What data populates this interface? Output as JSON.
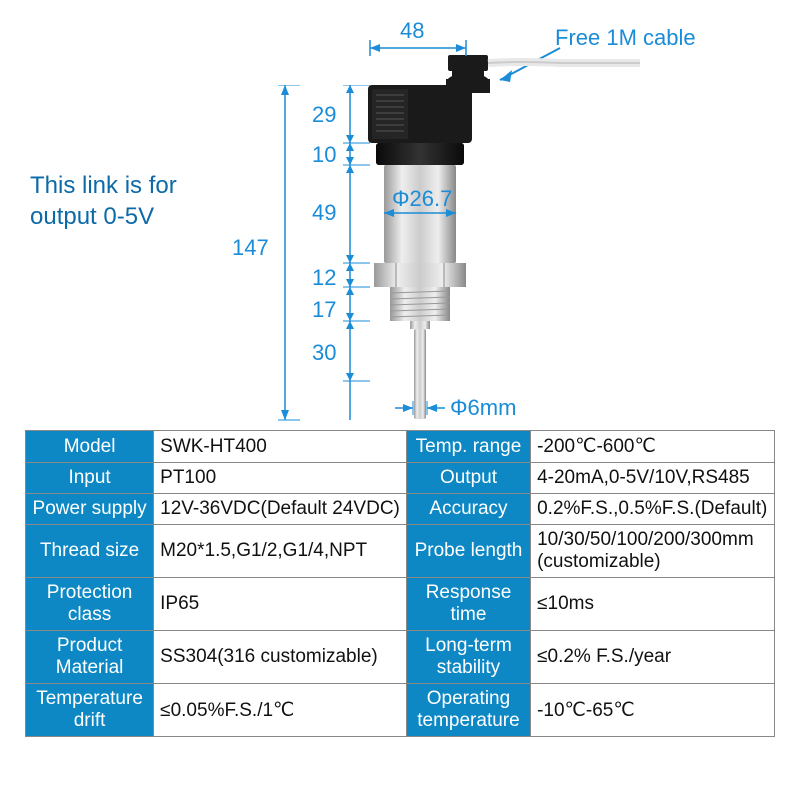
{
  "note_text": "This link is for\noutput 0-5V",
  "note_color": "#0d6aa8",
  "cable_note": "Free 1M cable",
  "dimensions": {
    "top_width": "48",
    "total_height": "147",
    "seg1": "29",
    "seg2": "10",
    "seg3": "49",
    "seg4": "12",
    "seg5": "17",
    "seg6": "30",
    "body_dia": "Φ26.7",
    "probe_dia": "Φ6mm"
  },
  "dim_color": "#1a8cd8",
  "sensor": {
    "connector_color": "#1a1a1a",
    "body_light": "#e8e8e8",
    "body_mid": "#c8c8c8",
    "body_dark": "#888",
    "hex_color": "#d8d8d8",
    "thread_color": "#bbb",
    "probe_color": "#e0e0e0",
    "cable_color": "#f0f0f0"
  },
  "table": {
    "header_bg": "#0d88c4",
    "rows": [
      {
        "l1": "Model",
        "v1": "SWK-HT400",
        "l2": "Temp. range",
        "v2": "-200℃-600℃"
      },
      {
        "l1": "Input",
        "v1": "PT100",
        "l2": "Output",
        "v2": "4-20mA,0-5V/10V,RS485"
      },
      {
        "l1": "Power supply",
        "v1": "12V-36VDC(Default 24VDC)",
        "l2": "Accuracy",
        "v2": "0.2%F.S.,0.5%F.S.(Default)"
      },
      {
        "l1": "Thread size",
        "v1": "M20*1.5,G1/2,G1/4,NPT",
        "l2": "Probe length",
        "v2": "10/30/50/100/200/300mm\n(customizable)"
      },
      {
        "l1": "Protection\nclass",
        "v1": "IP65",
        "l2": "Response\ntime",
        "v2": "≤10ms"
      },
      {
        "l1": "Product\nMaterial",
        "v1": "SS304(316 customizable)",
        "l2": "Long-term\nstability",
        "v2": "≤0.2% F.S./year"
      },
      {
        "l1": "Temperature\ndrift",
        "v1": "≤0.05%F.S./1℃",
        "l2": "Operating\ntemperature",
        "v2": "-10℃-65℃"
      }
    ]
  }
}
